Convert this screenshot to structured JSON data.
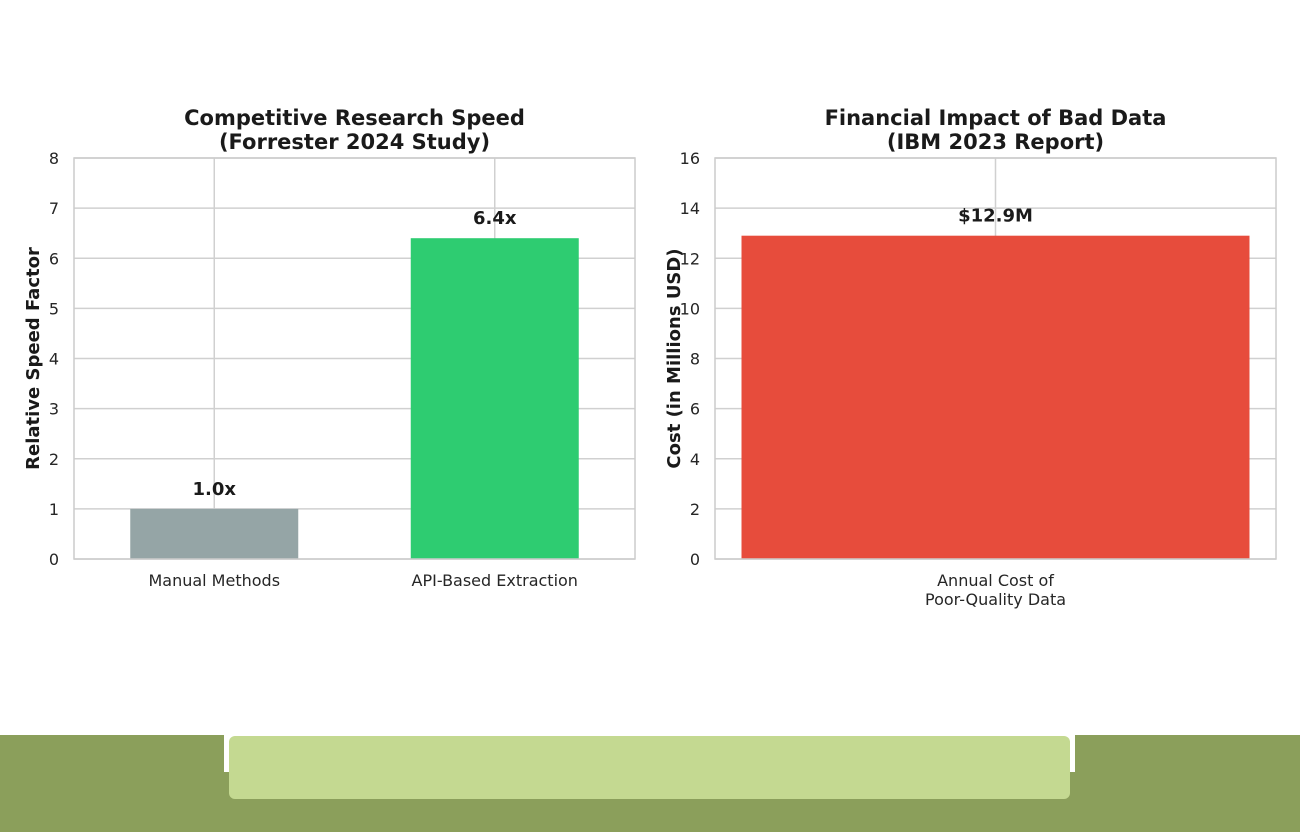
{
  "chart_data": [
    {
      "type": "bar",
      "title": "Competitive Research Speed",
      "subtitle": "(Forrester 2024 Study)",
      "xlabel": "",
      "ylabel": "Relative Speed Factor",
      "categories": [
        "Manual Methods",
        "API-Based Extraction"
      ],
      "values": [
        1.0,
        6.4
      ],
      "data_labels": [
        "1.0x",
        "6.4x"
      ],
      "colors": [
        "#95a5a6",
        "#2ecc71"
      ],
      "ylim": [
        0,
        8
      ],
      "yticks": [
        "0",
        "1",
        "2",
        "3",
        "4",
        "5",
        "6",
        "7",
        "8"
      ],
      "grid": true
    },
    {
      "type": "bar",
      "title": "Financial Impact of Bad Data",
      "subtitle": "(IBM 2023 Report)",
      "xlabel": "",
      "ylabel": "Cost (in Millions USD)",
      "categories": [
        "Annual Cost of\nPoor-Quality Data"
      ],
      "values": [
        12.9
      ],
      "data_labels": [
        "$12.9M"
      ],
      "colors": [
        "#e74c3c"
      ],
      "ylim": [
        0,
        16
      ],
      "yticks": [
        "0",
        "2",
        "4",
        "6",
        "8",
        "10",
        "12",
        "14",
        "16"
      ],
      "grid": true
    }
  ],
  "footer": {
    "band_color": "#8b9f5b",
    "pill_color": "#c4d991"
  }
}
